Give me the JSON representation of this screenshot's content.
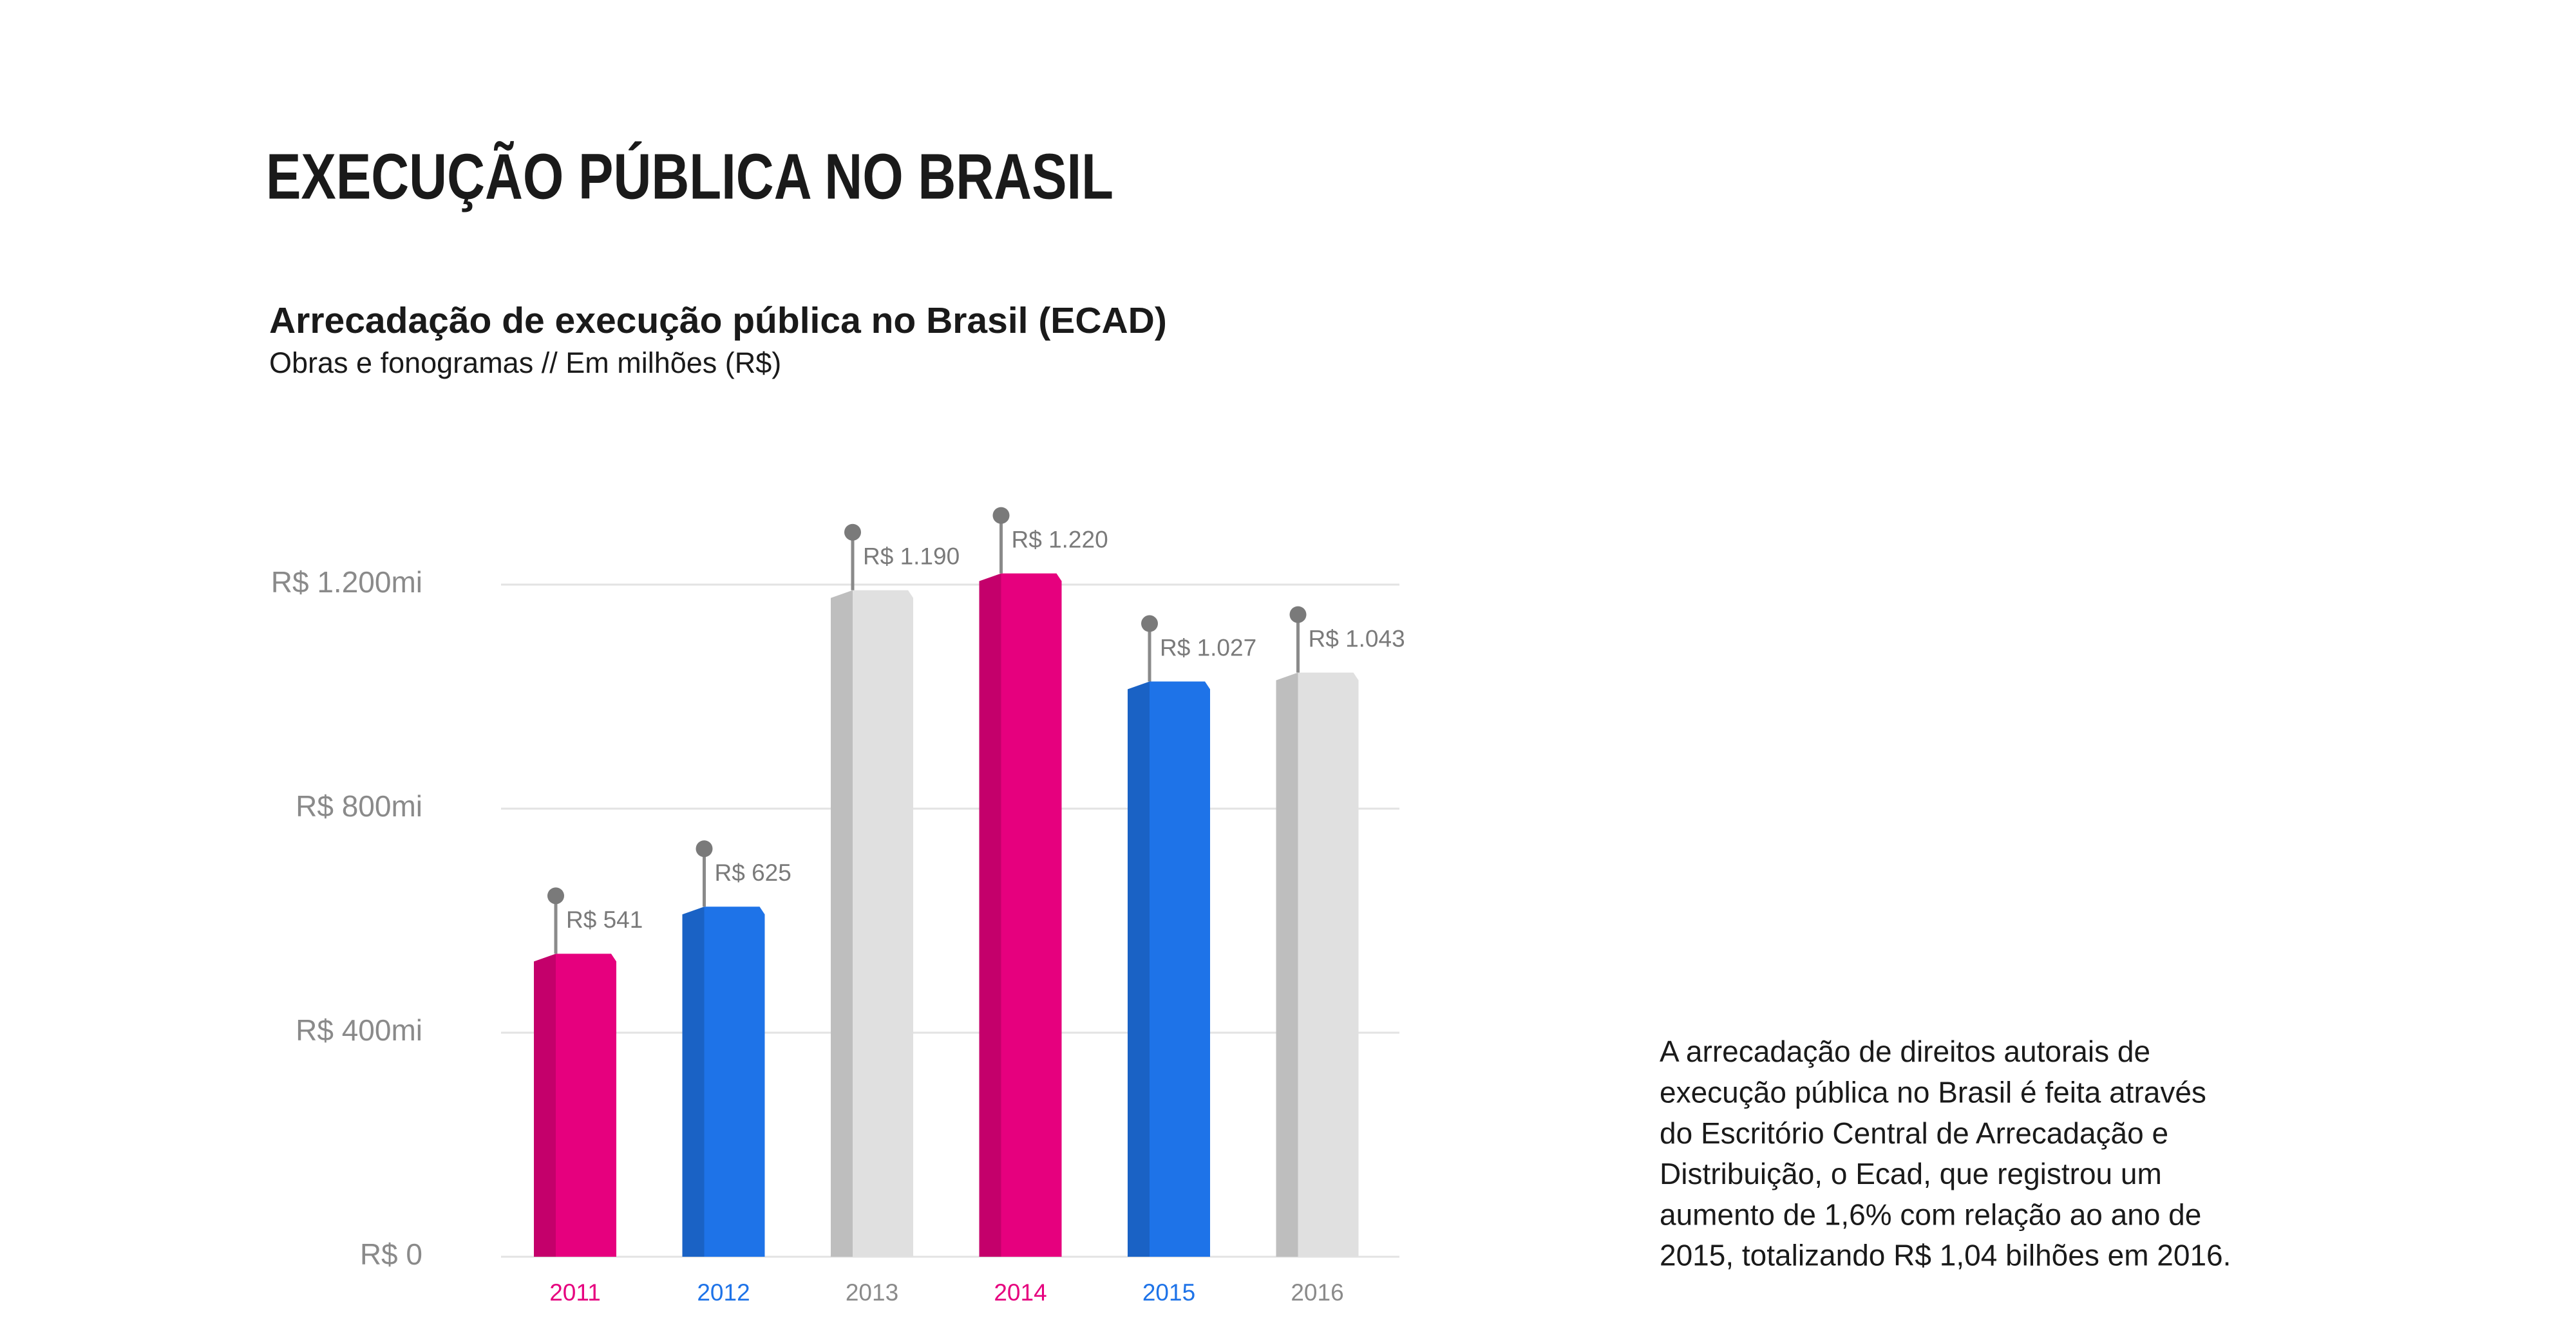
{
  "header": {
    "title": "EXECUÇÃO PÚBLICA NO BRASIL"
  },
  "chart_data": {
    "type": "bar3d",
    "title": "Arrecadação de execução pública no Brasil (ECAD)",
    "subtitle": "Obras e fonogramas // Em milhões (R$)",
    "categories": [
      "2011",
      "2012",
      "2013",
      "2014",
      "2015",
      "2016"
    ],
    "values": [
      541,
      625,
      1190,
      1220,
      1027,
      1043
    ],
    "value_labels": [
      "R$ 541",
      "R$ 625",
      "R$ 1.190",
      "R$ 1.220",
      "R$ 1.027",
      "R$ 1.043"
    ],
    "colors": [
      "#e6007e",
      "#1e73e8",
      "#e0e0e0",
      "#e6007e",
      "#1e73e8",
      "#e0e0e0"
    ],
    "ylim": [
      0,
      1200
    ],
    "yticks": [
      {
        "value": 0,
        "label": "R$ 0"
      },
      {
        "value": 400,
        "label": "R$ 400mi"
      },
      {
        "value": 800,
        "label": "R$ 800mi"
      },
      {
        "value": 1200,
        "label": "R$ 1.200mi"
      }
    ],
    "grid": true
  },
  "annotation": [
    "A arrecadação de direitos autorais de",
    "execução pública no Brasil é feita através",
    "do Escritório Central de Arrecadação e",
    "Distribuição, o Ecad, que registrou um",
    "aumento de 1,6% com relação ao ano de",
    "2015, totalizando R$ 1,04 bilhões em 2016."
  ]
}
